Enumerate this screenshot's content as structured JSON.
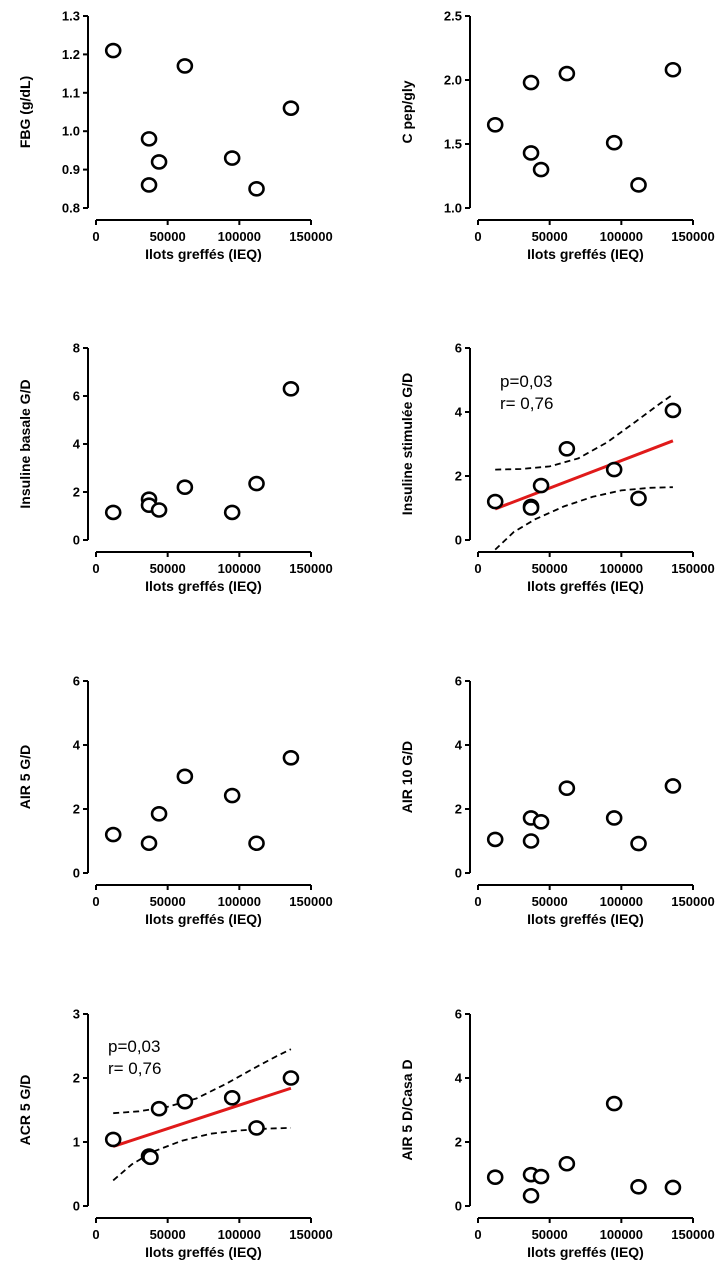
{
  "chart_data": [
    {
      "type": "scatter",
      "xlabel": "Ilots greffés (IEQ)",
      "ylabel": "FBG (g/dL)",
      "xlim": [
        0,
        150000
      ],
      "xticks": [
        0,
        50000,
        100000,
        150000
      ],
      "ylim": [
        0.8,
        1.3
      ],
      "yticks": [
        0.8,
        0.9,
        1.0,
        1.1,
        1.2,
        1.3
      ],
      "ytick_labels": [
        "0.8",
        "0.9",
        "1.0",
        "1.1",
        "1.2",
        "1.3"
      ],
      "points": [
        [
          12000,
          1.21
        ],
        [
          37000,
          0.98
        ],
        [
          37000,
          0.86
        ],
        [
          44000,
          0.92
        ],
        [
          62000,
          1.17
        ],
        [
          95000,
          0.93
        ],
        [
          112000,
          0.85
        ],
        [
          136000,
          1.06
        ]
      ]
    },
    {
      "type": "scatter",
      "xlabel": "Ilots greffés (IEQ)",
      "ylabel": "C pep/gly",
      "xlim": [
        0,
        150000
      ],
      "xticks": [
        0,
        50000,
        100000,
        150000
      ],
      "ylim": [
        1.0,
        2.5
      ],
      "yticks": [
        1.0,
        1.5,
        2.0,
        2.5
      ],
      "ytick_labels": [
        "1.0",
        "1.5",
        "2.0",
        "2.5"
      ],
      "points": [
        [
          12000,
          1.65
        ],
        [
          37000,
          1.98
        ],
        [
          37000,
          1.43
        ],
        [
          44000,
          1.3
        ],
        [
          62000,
          2.05
        ],
        [
          95000,
          1.51
        ],
        [
          112000,
          1.18
        ],
        [
          136000,
          2.08
        ]
      ]
    },
    {
      "type": "scatter",
      "xlabel": "Ilots greffés (IEQ)",
      "ylabel": "Insuline basale G/D",
      "xlim": [
        0,
        150000
      ],
      "xticks": [
        0,
        50000,
        100000,
        150000
      ],
      "ylim": [
        0,
        8
      ],
      "yticks": [
        0,
        2,
        4,
        6,
        8
      ],
      "ytick_labels": [
        "0",
        "2",
        "4",
        "6",
        "8"
      ],
      "points": [
        [
          12000,
          1.15
        ],
        [
          37000,
          1.7
        ],
        [
          37000,
          1.45
        ],
        [
          44000,
          1.25
        ],
        [
          62000,
          2.2
        ],
        [
          95000,
          1.15
        ],
        [
          112000,
          2.35
        ],
        [
          136000,
          6.3
        ]
      ]
    },
    {
      "type": "scatter",
      "xlabel": "Ilots greffés (IEQ)",
      "ylabel": "Insuline stimulée G/D",
      "xlim": [
        0,
        150000
      ],
      "xticks": [
        0,
        50000,
        100000,
        150000
      ],
      "ylim": [
        0,
        6
      ],
      "yticks": [
        0,
        2,
        4,
        6
      ],
      "ytick_labels": [
        "0",
        "2",
        "4",
        "6"
      ],
      "points": [
        [
          12000,
          1.2
        ],
        [
          37000,
          1.05
        ],
        [
          37000,
          1.0
        ],
        [
          44000,
          1.7
        ],
        [
          62000,
          2.85
        ],
        [
          95000,
          2.2
        ],
        [
          112000,
          1.3
        ],
        [
          136000,
          4.05
        ]
      ],
      "fit_line": [
        [
          12000,
          0.97
        ],
        [
          136000,
          3.1
        ]
      ],
      "ci_upper": [
        [
          12000,
          2.2
        ],
        [
          30000,
          2.22
        ],
        [
          50000,
          2.3
        ],
        [
          70000,
          2.55
        ],
        [
          90000,
          3.05
        ],
        [
          110000,
          3.7
        ],
        [
          125000,
          4.2
        ],
        [
          136000,
          4.55
        ]
      ],
      "ci_lower": [
        [
          12000,
          -0.3
        ],
        [
          25000,
          0.25
        ],
        [
          40000,
          0.65
        ],
        [
          60000,
          1.05
        ],
        [
          80000,
          1.35
        ],
        [
          100000,
          1.55
        ],
        [
          120000,
          1.63
        ],
        [
          136000,
          1.65
        ]
      ],
      "annotations": [
        "p=0,03",
        "r= 0,76"
      ],
      "colors": {
        "fit": "#e01a1a"
      }
    },
    {
      "type": "scatter",
      "xlabel": "Ilots greffés (IEQ)",
      "ylabel": "AIR 5 G/D",
      "xlim": [
        0,
        150000
      ],
      "xticks": [
        0,
        50000,
        100000,
        150000
      ],
      "ylim": [
        0,
        6
      ],
      "yticks": [
        0,
        2,
        4,
        6
      ],
      "ytick_labels": [
        "0",
        "2",
        "4",
        "6"
      ],
      "points": [
        [
          12000,
          1.2
        ],
        [
          37000,
          0.93
        ],
        [
          44000,
          1.85
        ],
        [
          62000,
          3.02
        ],
        [
          95000,
          2.42
        ],
        [
          112000,
          0.93
        ],
        [
          136000,
          3.6
        ]
      ]
    },
    {
      "type": "scatter",
      "xlabel": "Ilots greffés (IEQ)",
      "ylabel": "AIR 10 G/D",
      "xlim": [
        0,
        150000
      ],
      "xticks": [
        0,
        50000,
        100000,
        150000
      ],
      "ylim": [
        0,
        6
      ],
      "yticks": [
        0,
        2,
        4,
        6
      ],
      "ytick_labels": [
        "0",
        "2",
        "4",
        "6"
      ],
      "points": [
        [
          12000,
          1.05
        ],
        [
          37000,
          1.72
        ],
        [
          37000,
          1.0
        ],
        [
          44000,
          1.6
        ],
        [
          62000,
          2.65
        ],
        [
          95000,
          1.72
        ],
        [
          112000,
          0.92
        ],
        [
          136000,
          2.72
        ]
      ]
    },
    {
      "type": "scatter",
      "xlabel": "Ilots greffés (IEQ)",
      "ylabel": "ACR 5 G/D",
      "xlim": [
        0,
        150000
      ],
      "xticks": [
        0,
        50000,
        100000,
        150000
      ],
      "ylim": [
        0,
        3
      ],
      "yticks": [
        0,
        1,
        2,
        3
      ],
      "ytick_labels": [
        "0",
        "1",
        "2",
        "3"
      ],
      "points": [
        [
          12000,
          1.04
        ],
        [
          37000,
          0.78
        ],
        [
          38000,
          0.76
        ],
        [
          44000,
          1.52
        ],
        [
          62000,
          1.63
        ],
        [
          95000,
          1.69
        ],
        [
          112000,
          1.22
        ],
        [
          136000,
          2.0
        ]
      ],
      "fit_line": [
        [
          12000,
          0.93
        ],
        [
          136000,
          1.84
        ]
      ],
      "ci_upper": [
        [
          12000,
          1.45
        ],
        [
          30000,
          1.48
        ],
        [
          50000,
          1.55
        ],
        [
          70000,
          1.68
        ],
        [
          90000,
          1.9
        ],
        [
          110000,
          2.15
        ],
        [
          125000,
          2.33
        ],
        [
          136000,
          2.45
        ]
      ],
      "ci_lower": [
        [
          12000,
          0.4
        ],
        [
          25000,
          0.65
        ],
        [
          40000,
          0.85
        ],
        [
          60000,
          1.02
        ],
        [
          80000,
          1.13
        ],
        [
          100000,
          1.18
        ],
        [
          120000,
          1.21
        ],
        [
          136000,
          1.22
        ]
      ],
      "annotations": [
        "p=0,03",
        "r= 0,76"
      ],
      "colors": {
        "fit": "#e01a1a"
      }
    },
    {
      "type": "scatter",
      "xlabel": "Ilots greffés (IEQ)",
      "ylabel": "AIR 5 D/Casa D",
      "xlim": [
        0,
        150000
      ],
      "xticks": [
        0,
        50000,
        100000,
        150000
      ],
      "ylim": [
        0,
        6
      ],
      "yticks": [
        0,
        2,
        4,
        6
      ],
      "ytick_labels": [
        "0",
        "2",
        "4",
        "6"
      ],
      "points": [
        [
          12000,
          0.9
        ],
        [
          37000,
          0.98
        ],
        [
          37000,
          0.32
        ],
        [
          44000,
          0.92
        ],
        [
          62000,
          1.32
        ],
        [
          95000,
          3.2
        ],
        [
          112000,
          0.6
        ],
        [
          136000,
          0.58
        ]
      ]
    }
  ]
}
